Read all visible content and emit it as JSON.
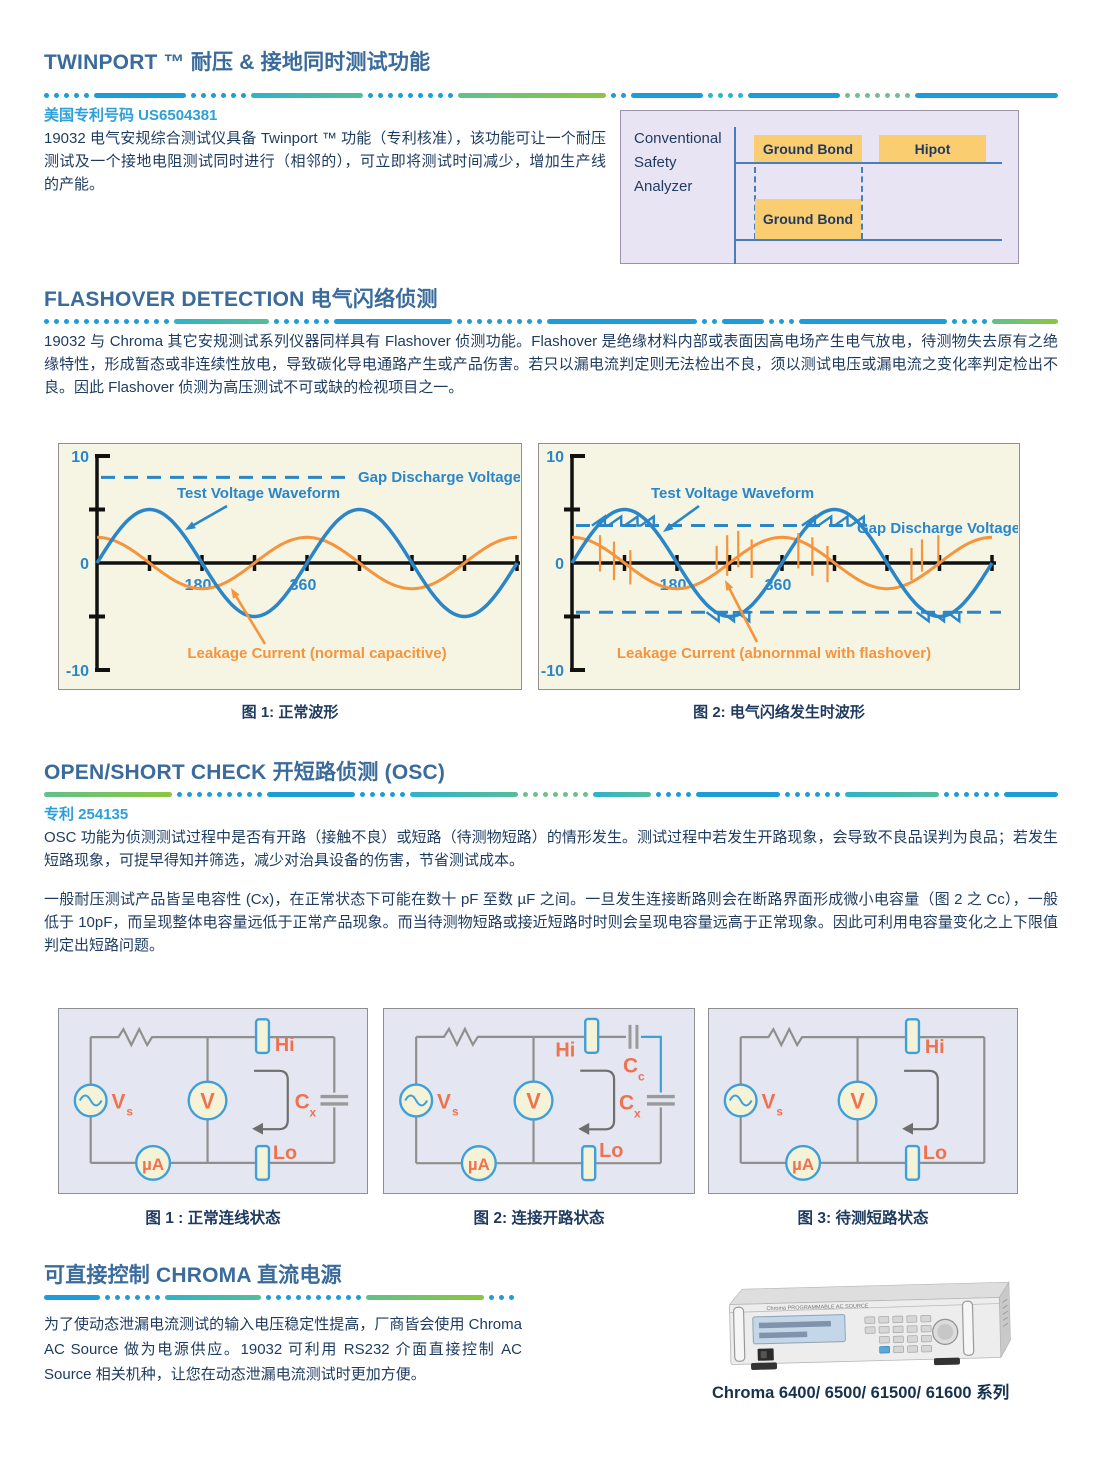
{
  "twinport": {
    "heading": "TWINPORT ™ 耐压 & 接地同时测试功能",
    "patent": "美国专利号码 US6504381",
    "body": "19032 电气安规综合测试仪具备 Twinport ™ 功能（专利核准），该功能可让一个耐压测试及一个接地电阻测试同时进行（相邻的），可立即将测试时间减少，增加生产线的产能。",
    "diagram": {
      "label_lines": [
        "Conventional",
        "Safety",
        "Analyzer"
      ],
      "row1_box1": "Ground Bond",
      "row1_box2": "Hipot",
      "row2_box1": "Ground Bond"
    }
  },
  "flashover": {
    "heading": "FLASHOVER DETECTION 电气闪络侦测",
    "body": "19032 与 Chroma 其它安规测试系列仪器同样具有 Flashover 侦测功能。Flashover 是绝缘材料内部或表面因高电场产生电气放电，待测物失去原有之绝缘特性，形成暂态或非连续性放电，导致碳化导电通路产生或产品伤害。若只以漏电流判定则无法检出不良，须以测试电压或漏电流之变化率判定检出不良。因此 Flashover 侦测为高压测试不可或缺的检视项目之一。",
    "fig1_caption": "图 1: 正常波形",
    "fig2_caption": "图 2: 电气闪络发生时波形"
  },
  "chart_data": [
    {
      "type": "line",
      "title": "图 1: 正常波形",
      "gap_label": "Gap Discharge Voltage",
      "gap_discharge_levels": [
        8
      ],
      "x_ticks": [
        {
          "label": "180",
          "value": 180
        },
        {
          "label": "360",
          "value": 360
        }
      ],
      "y_ticks": [
        {
          "label": "10",
          "value": 10
        },
        {
          "label": "0",
          "value": 0
        },
        {
          "label": "-10",
          "value": -10
        }
      ],
      "ylim": [
        -10,
        10
      ],
      "x_range_deg": [
        0,
        720
      ],
      "series": [
        {
          "name": "Test Voltage Waveform",
          "waveform": "sine",
          "amplitude": 5,
          "phase_deg": 0,
          "color": "#2b86c8"
        },
        {
          "name": "Leakage Current (normal capacitive)",
          "waveform": "sine",
          "amplitude": 2.4,
          "phase_deg": 90,
          "color": "#f5943c"
        }
      ]
    },
    {
      "type": "line",
      "title": "图 2: 电气闪络发生时波形",
      "gap_label": "Gap Discharge Voltage",
      "gap_discharge_levels": [
        3.5,
        -4.6
      ],
      "x_ticks": [
        {
          "label": "180",
          "value": 180
        },
        {
          "label": "360",
          "value": 360
        }
      ],
      "y_ticks": [
        {
          "label": "10",
          "value": 10
        },
        {
          "label": "0",
          "value": 0
        },
        {
          "label": "-10",
          "value": -10
        }
      ],
      "ylim": [
        -10,
        10
      ],
      "x_range_deg": [
        0,
        720
      ],
      "series": [
        {
          "name": "Test Voltage Waveform",
          "waveform": "sine-with-flashover-notches",
          "amplitude": 5,
          "phase_deg": 0,
          "color": "#2b86c8"
        },
        {
          "name": "Leakage Current (abnornmal with flashover)",
          "waveform": "sine-with-spikes",
          "amplitude": 2.4,
          "phase_deg": 90,
          "color": "#f5943c"
        }
      ],
      "flashover_spikes": [
        {
          "deg": 48,
          "top": 2.6,
          "bot": -0.8
        },
        {
          "deg": 72,
          "top": 2.0,
          "bot": -1.6
        },
        {
          "deg": 100,
          "top": 1.2,
          "bot": -2.0
        },
        {
          "deg": 248,
          "top": 1.6,
          "bot": -0.6
        },
        {
          "deg": 266,
          "top": 2.6,
          "bot": -1.2
        },
        {
          "deg": 285,
          "top": 3.0,
          "bot": -0.4
        },
        {
          "deg": 308,
          "top": 2.2,
          "bot": -1.4
        },
        {
          "deg": 388,
          "top": 2.8,
          "bot": -0.5
        },
        {
          "deg": 412,
          "top": 2.4,
          "bot": -1.2
        },
        {
          "deg": 438,
          "top": 1.6,
          "bot": -1.8
        },
        {
          "deg": 582,
          "top": 1.4,
          "bot": -1.6
        },
        {
          "deg": 600,
          "top": 2.2,
          "bot": -0.8
        },
        {
          "deg": 628,
          "top": 2.6,
          "bot": -0.3
        }
      ]
    }
  ],
  "osc": {
    "heading": "OPEN/SHORT CHECK 开短路侦测 (OSC)",
    "patent": "专利 254135",
    "body1": "OSC 功能为侦测测试过程中是否有开路（接触不良）或短路（待测物短路）的情形发生。测试过程中若发生开路现象，会导致不良品误判为良品；若发生短路现象，可提早得知并筛选，减少对治具设备的伤害，节省测试成本。",
    "body2": "一般耐压测试产品皆呈电容性 (Cx)，在正常状态下可能在数十 pF 至数 µF 之间。一旦发生连接断路则会在断路界面形成微小电容量（图 2 之 Cc），一般低于 10pF，而呈现整体电容量远低于正常产品现象。而当待测物短路或接近短路时时则会呈现电容量远高于正常现象。因此可利用电容量变化之上下限值判定出短路问题。",
    "fig1_caption": "图 1 : 正常连线状态",
    "fig2_caption": "图 2: 连接开路状态",
    "fig3_caption": "图 3: 待测短路状态",
    "labels": {
      "vs_main": "V",
      "vs_sub": "s",
      "voltmeter": "V",
      "ammeter": "µA",
      "hi": "Hi",
      "lo": "Lo",
      "cx_main": "C",
      "cx_sub": "x",
      "cc_main": "C",
      "cc_sub": "c"
    }
  },
  "chroma_source": {
    "heading": "可直接控制 CHROMA 直流电源",
    "body": "为了使动态泄漏电流测试的输入电压稳定性提高，厂商皆会使用 Chroma AC Source 做为电源供应。19032 可利用 RS232 介面直接控制 AC Source 相关机种，让您在动态泄漏电流测试时更加方便。",
    "device_label": "Chroma PROGRAMMABLE AC SOURCE",
    "caption": "Chroma 6400/ 6500/ 61500/ 61600 系列"
  },
  "colors": {
    "heading": "#3a6b9b",
    "body_text": "#1d3a5f",
    "patent_blue": "#2e9fd8",
    "wave_blue": "#2b86c8",
    "wave_orange": "#f5943c",
    "circuit_label_orange": "#f0714d",
    "timeline_bar_orange": "#fbcd71",
    "sep_blue": "#1e9cd7",
    "sep_teal": "#2fb3c9",
    "sep_green": "#8cc63f"
  }
}
